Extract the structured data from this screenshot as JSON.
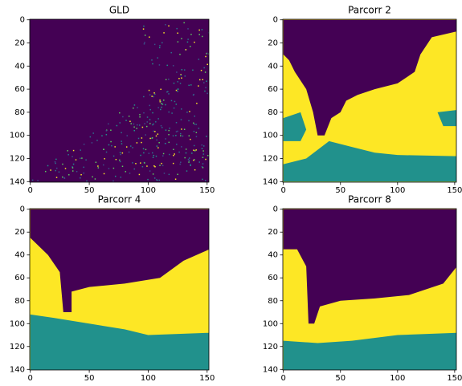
{
  "chart_data": [
    {
      "type": "image",
      "title": "GLD",
      "xlim": [
        -0.5,
        151.5
      ],
      "ylim": [
        140.5,
        -0.5
      ],
      "xticks": [
        0,
        50,
        100,
        150
      ],
      "yticks": [
        0,
        20,
        40,
        60,
        80,
        100,
        120,
        140
      ],
      "colormap": [
        "#440154",
        "#21918c",
        "#fde725"
      ]
    },
    {
      "type": "image",
      "title": "Parcorr 2",
      "xlim": [
        -0.5,
        151.5
      ],
      "ylim": [
        140.5,
        -0.5
      ],
      "xticks": [
        0,
        50,
        100,
        150
      ],
      "yticks": [
        0,
        20,
        40,
        60,
        80,
        100,
        120,
        140
      ],
      "colormap": [
        "#440154",
        "#21918c",
        "#fde725"
      ]
    },
    {
      "type": "image",
      "title": "Parcorr 4",
      "xlim": [
        -0.5,
        151.5
      ],
      "ylim": [
        140.5,
        -0.5
      ],
      "xticks": [
        0,
        50,
        100,
        150
      ],
      "yticks": [
        0,
        20,
        40,
        60,
        80,
        100,
        120,
        140
      ],
      "colormap": [
        "#440154",
        "#21918c",
        "#fde725"
      ]
    },
    {
      "type": "image",
      "title": "Parcorr 8",
      "xlim": [
        -0.5,
        151.5
      ],
      "ylim": [
        140.5,
        -0.5
      ],
      "xticks": [
        0,
        50,
        100,
        150
      ],
      "yticks": [
        0,
        20,
        40,
        60,
        80,
        100,
        120,
        140
      ],
      "colormap": [
        "#440154",
        "#21918c",
        "#fde725"
      ]
    }
  ]
}
